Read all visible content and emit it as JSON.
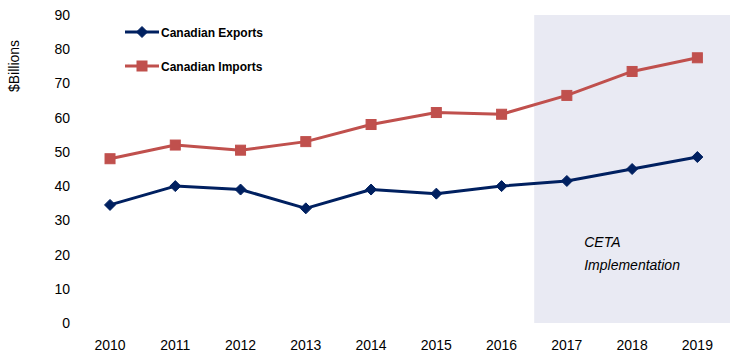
{
  "chart_data": {
    "type": "line",
    "y_label": "$Billions",
    "categories": [
      "2010",
      "2011",
      "2012",
      "2013",
      "2014",
      "2015",
      "2016",
      "2017",
      "2018",
      "2019"
    ],
    "series": [
      {
        "name": "Canadian Exports",
        "color": "#002060",
        "marker": "diamond",
        "values": [
          34.5,
          40,
          39,
          33.5,
          39,
          37.8,
          40,
          41.5,
          45,
          48.5
        ]
      },
      {
        "name": "Canadian Imports",
        "color": "#c0504d",
        "marker": "square",
        "values": [
          48,
          52,
          50.5,
          53,
          58,
          61.5,
          61,
          66.5,
          73.5,
          77.5
        ]
      }
    ],
    "ylim": [
      0,
      90
    ],
    "yticks": [
      0,
      10,
      20,
      30,
      40,
      50,
      60,
      70,
      80,
      90
    ],
    "grid": false,
    "legend": "upper left",
    "annotations": [
      {
        "text": "CETA Implementation",
        "from": "2017",
        "to": "2019"
      }
    ]
  }
}
